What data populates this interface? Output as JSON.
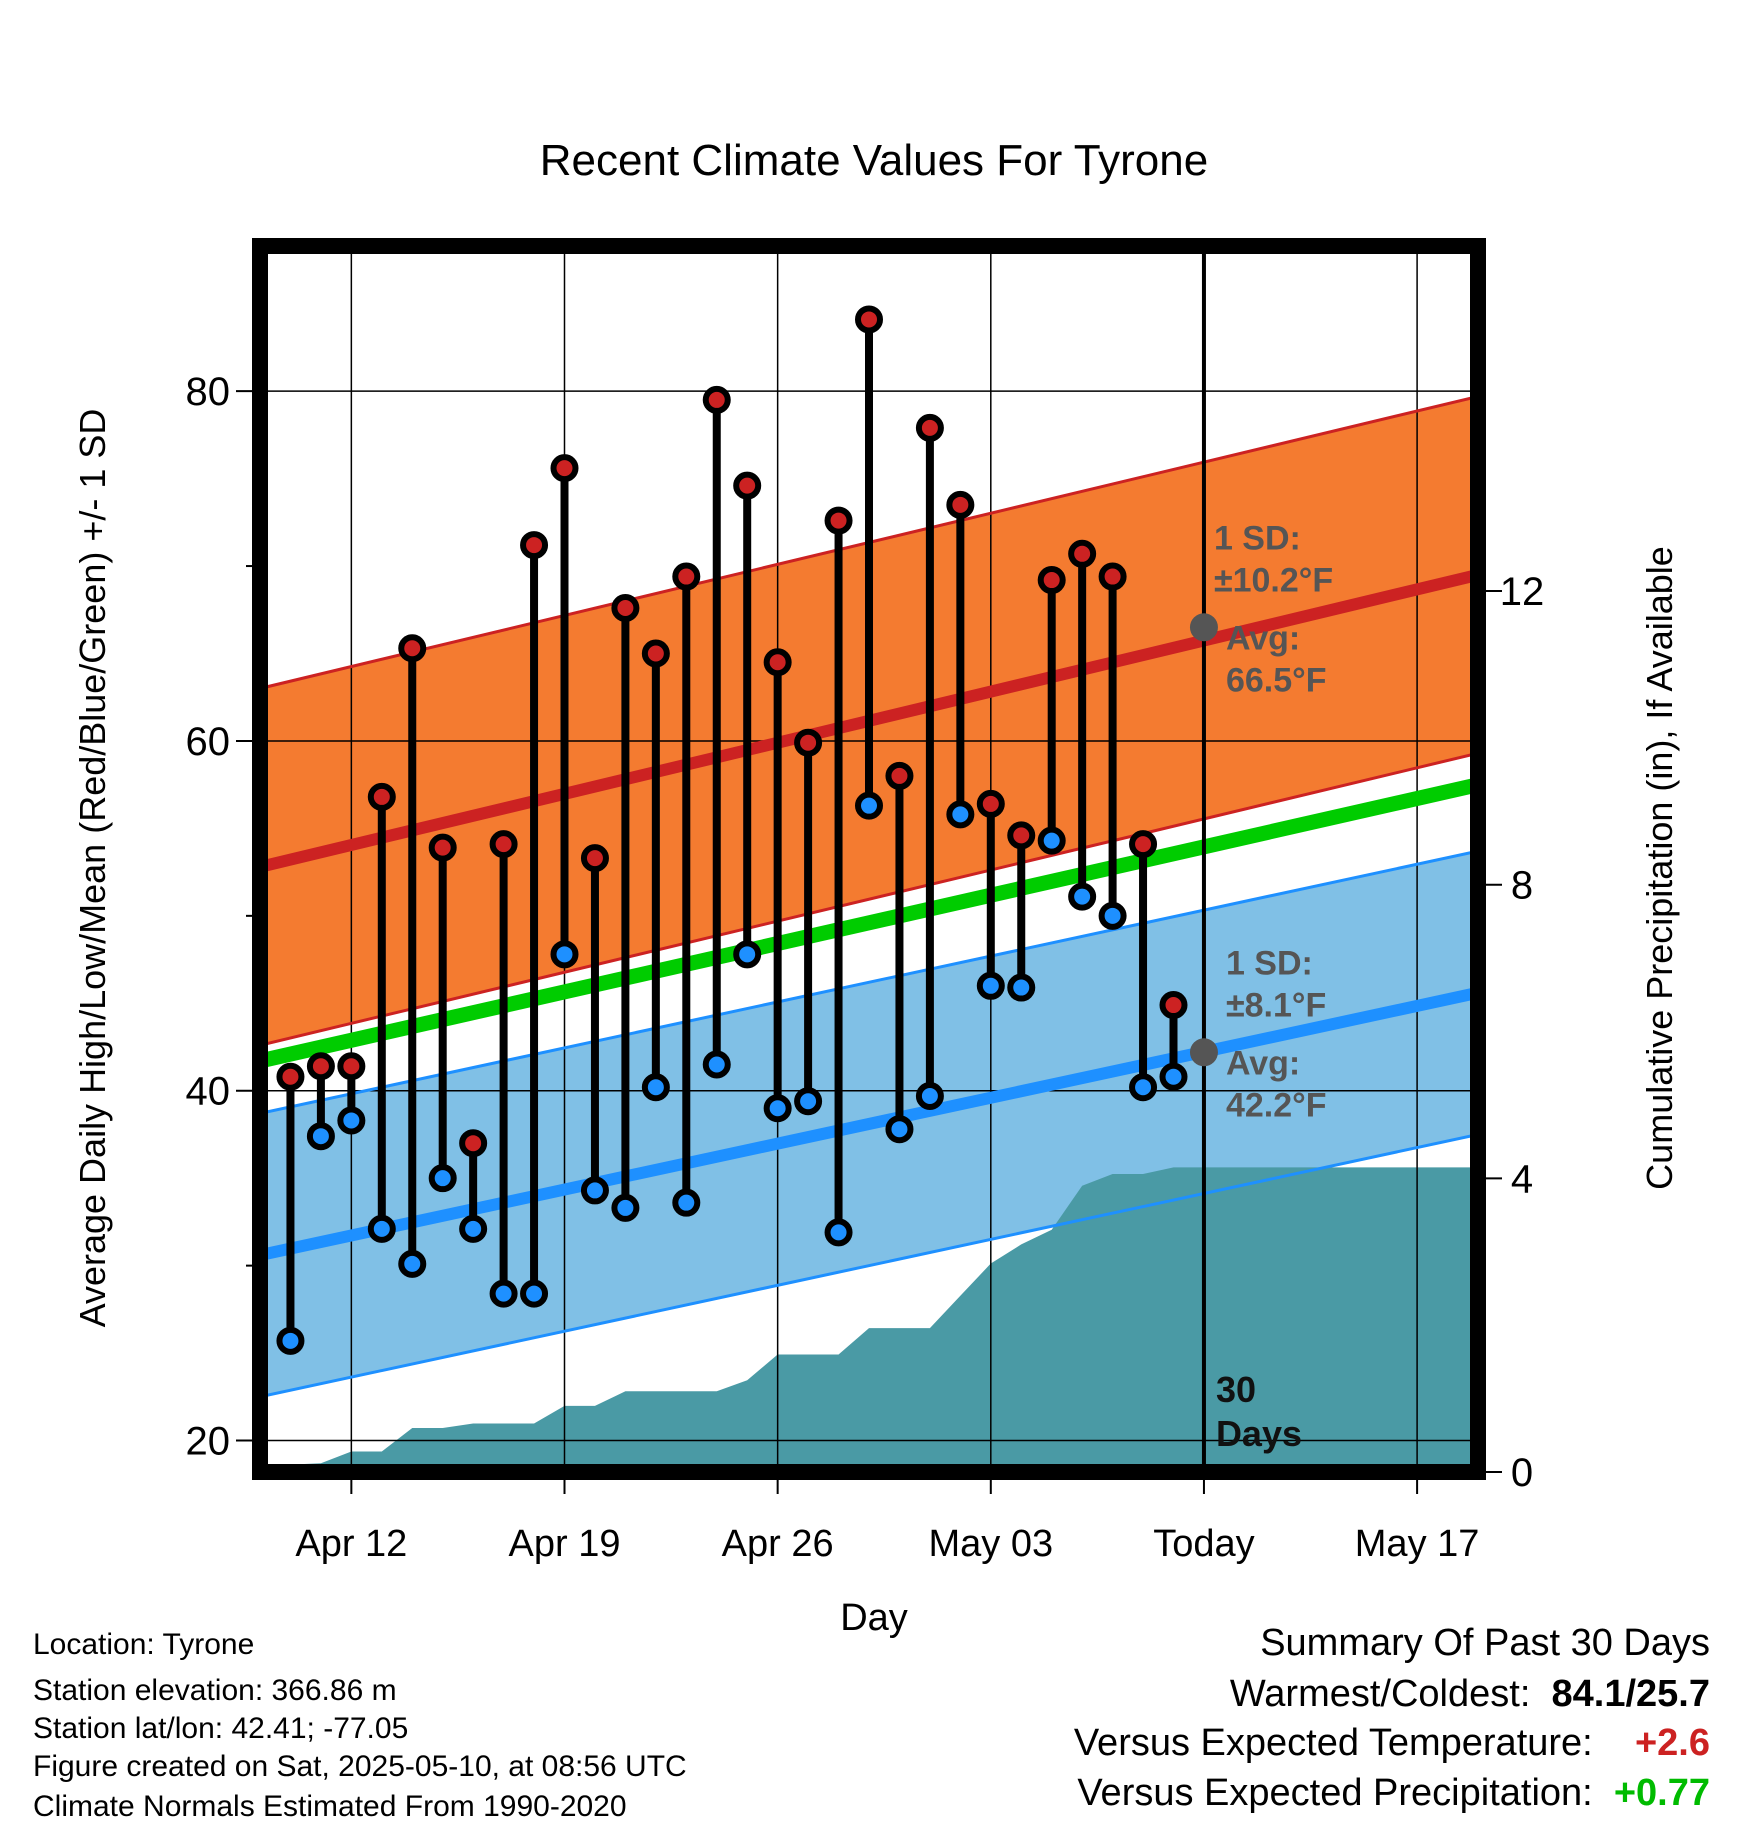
{
  "chart_data": {
    "type": "line",
    "title": "Recent Climate Values For Tyrone",
    "xlabel": "Day",
    "ylabel": "Average Daily High/Low/Mean (Red/Blue/Green) +/- 1 SD",
    "y2label": "Cumulative Precipitation (in), If Available",
    "x_ticks": [
      "Apr 12",
      "Apr 19",
      "Apr 26",
      "May 03",
      "Today",
      "May 17"
    ],
    "x_tick_dates": [
      "2025-04-12",
      "2025-04-19",
      "2025-04-26",
      "2025-05-03",
      "2025-05-10",
      "2025-05-17"
    ],
    "x_range": [
      "2025-04-09",
      "2025-05-19"
    ],
    "today": "2025-05-10",
    "ylim": [
      18.2,
      88.3
    ],
    "y_ticks": [
      20,
      40,
      60,
      80
    ],
    "y2lim": [
      0,
      16.7
    ],
    "y2_ticks": [
      0,
      4,
      8,
      12
    ],
    "grid": true,
    "dates": [
      "2025-04-10",
      "2025-04-11",
      "2025-04-12",
      "2025-04-13",
      "2025-04-14",
      "2025-04-15",
      "2025-04-16",
      "2025-04-17",
      "2025-04-18",
      "2025-04-19",
      "2025-04-20",
      "2025-04-21",
      "2025-04-22",
      "2025-04-23",
      "2025-04-24",
      "2025-04-25",
      "2025-04-26",
      "2025-04-27",
      "2025-04-28",
      "2025-04-29",
      "2025-04-30",
      "2025-05-01",
      "2025-05-02",
      "2025-05-03",
      "2025-05-04",
      "2025-05-05",
      "2025-05-06",
      "2025-05-07",
      "2025-05-08",
      "2025-05-09"
    ],
    "highs": [
      40.8,
      41.4,
      41.4,
      56.8,
      65.3,
      53.9,
      37.0,
      54.1,
      71.2,
      75.6,
      53.3,
      67.6,
      65.0,
      69.4,
      79.5,
      74.6,
      64.5,
      59.9,
      72.6,
      84.1,
      58.0,
      77.9,
      73.5,
      56.4,
      54.6,
      69.2,
      70.7,
      69.4,
      54.1,
      44.9
    ],
    "lows": [
      25.7,
      37.4,
      38.3,
      32.1,
      30.1,
      35.0,
      32.1,
      28.4,
      28.4,
      47.8,
      34.3,
      33.3,
      40.2,
      33.6,
      41.5,
      47.8,
      39.0,
      39.4,
      31.9,
      56.3,
      37.8,
      39.7,
      55.8,
      46.0,
      45.9,
      54.3,
      51.1,
      50.0,
      40.2,
      40.8
    ],
    "normal_high": {
      "start": 52.8,
      "end": 69.5,
      "sd": 10.2
    },
    "normal_low": {
      "start": 30.6,
      "end": 45.6,
      "sd": 8.1
    },
    "normal_mean": {
      "start": 41.7,
      "end": 57.5
    },
    "precip_cumulative": [
      {
        "date": "2025-04-09",
        "value": 0.0
      },
      {
        "date": "2025-04-10",
        "value": 0.1
      },
      {
        "date": "2025-04-11",
        "value": 0.12
      },
      {
        "date": "2025-04-12",
        "value": 0.28
      },
      {
        "date": "2025-04-13",
        "value": 0.28
      },
      {
        "date": "2025-04-14",
        "value": 0.6
      },
      {
        "date": "2025-04-15",
        "value": 0.6
      },
      {
        "date": "2025-04-16",
        "value": 0.66
      },
      {
        "date": "2025-04-17",
        "value": 0.66
      },
      {
        "date": "2025-04-18",
        "value": 0.66
      },
      {
        "date": "2025-04-19",
        "value": 0.9
      },
      {
        "date": "2025-04-20",
        "value": 0.9
      },
      {
        "date": "2025-04-21",
        "value": 1.1
      },
      {
        "date": "2025-04-22",
        "value": 1.1
      },
      {
        "date": "2025-04-23",
        "value": 1.1
      },
      {
        "date": "2025-04-24",
        "value": 1.1
      },
      {
        "date": "2025-04-25",
        "value": 1.25
      },
      {
        "date": "2025-04-26",
        "value": 1.6
      },
      {
        "date": "2025-04-27",
        "value": 1.6
      },
      {
        "date": "2025-04-28",
        "value": 1.6
      },
      {
        "date": "2025-04-29",
        "value": 1.96
      },
      {
        "date": "2025-04-30",
        "value": 1.96
      },
      {
        "date": "2025-05-01",
        "value": 1.96
      },
      {
        "date": "2025-05-02",
        "value": 2.4
      },
      {
        "date": "2025-05-03",
        "value": 2.84
      },
      {
        "date": "2025-05-04",
        "value": 3.1
      },
      {
        "date": "2025-05-05",
        "value": 3.3
      },
      {
        "date": "2025-05-06",
        "value": 3.9
      },
      {
        "date": "2025-05-07",
        "value": 4.06
      },
      {
        "date": "2025-05-08",
        "value": 4.06
      },
      {
        "date": "2025-05-09",
        "value": 4.15
      },
      {
        "date": "2025-05-10",
        "value": 4.15
      },
      {
        "date": "2025-05-19",
        "value": 4.15
      }
    ],
    "annotations": {
      "high_sd_line1": "1 SD:",
      "high_sd_line2": "±10.2°F",
      "high_avg_line1": "Avg:",
      "high_avg_line2": "66.5°F",
      "high_avg_value": 66.5,
      "low_sd_line1": "1 SD:",
      "low_sd_line2": "±8.1°F",
      "low_avg_line1": "Avg:",
      "low_avg_line2": "42.2°F",
      "low_avg_value": 42.2,
      "days_line1": "30",
      "days_line2": "Days"
    },
    "colors": {
      "high": "#cc2222",
      "low": "#1e90ff",
      "mean": "#00cc00",
      "high_band": "#f47b30",
      "low_band": "#80c0e6",
      "precip": "#4a9aa5",
      "annotation": "#555555",
      "positive": "#00bb00"
    }
  },
  "info": {
    "location": "Location: Tyrone",
    "elevation": "Station elevation: 366.86 m",
    "latlon": "Station lat/lon: 42.41; -77.05",
    "created": "Figure created on Sat, 2025-05-10, at 08:56 UTC",
    "normals": "Climate Normals Estimated From 1990-2020"
  },
  "summary": {
    "title": "Summary Of Past 30 Days",
    "warm_cold_label": "Warmest/Coldest:",
    "warm_cold_value": "84.1/25.7",
    "temp_label": "Versus Expected Temperature:",
    "temp_value": "+2.6",
    "precip_label": "Versus Expected Precipitation:",
    "precip_value": "+0.77"
  }
}
